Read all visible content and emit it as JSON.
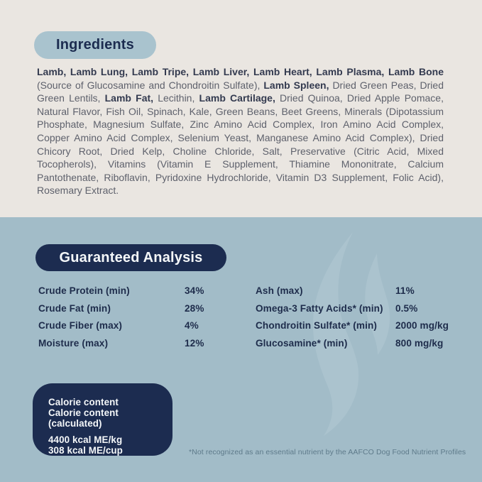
{
  "ingredients_section": {
    "heading": "Ingredients",
    "segments": [
      {
        "text": "Lamb, Lamb Lung, Lamb Tripe, Lamb Liver, Lamb Heart, Lamb Plasma, Lamb Bone",
        "bold": true
      },
      {
        "text": " (Source of Glucosamine and Chondroitin Sulfate), ",
        "bold": false
      },
      {
        "text": "Lamb Spleen,",
        "bold": true
      },
      {
        "text": " Dried Green Peas, Dried Green Lentils, ",
        "bold": false
      },
      {
        "text": "Lamb Fat,",
        "bold": true
      },
      {
        "text": " Lecithin, ",
        "bold": false
      },
      {
        "text": "Lamb Cartilage,",
        "bold": true
      },
      {
        "text": " Dried Quinoa, Dried Apple Pomace, Natural Flavor, Fish Oil, Spinach, Kale, Green Beans, Beet Greens, Minerals (Dipotassium Phosphate, Magnesium Sulfate, Zinc Amino Acid Complex, Iron Amino Acid Complex, Copper Amino Acid Complex, Selenium Yeast, Manganese Amino Acid Complex), Dried Chicory Root, Dried Kelp, Choline Chloride, Salt, Preservative (Citric Acid, Mixed Tocopherols), Vitamins (Vitamin E Supplement, Thiamine Mononitrate, Calcium Pantothenate, Riboflavin, Pyridoxine Hydrochloride, Vitamin D3 Supplement, Folic Acid), Rosemary Extract.",
        "bold": false
      }
    ]
  },
  "analysis_section": {
    "heading": "Guaranteed Analysis",
    "left_column": [
      {
        "label": "Crude Protein (min)",
        "value": "34%"
      },
      {
        "label": "Crude Fat (min)",
        "value": "28%"
      },
      {
        "label": "Crude Fiber (max)",
        "value": "4%"
      },
      {
        "label": "Moisture (max)",
        "value": "12%"
      }
    ],
    "right_column": [
      {
        "label": "Ash (max)",
        "value": "11%"
      },
      {
        "label": "Omega-3 Fatty Acids* (min)",
        "value": "0.5%"
      },
      {
        "label": "Chondroitin Sulfate* (min)",
        "value": "2000 mg/kg"
      },
      {
        "label": "Glucosamine* (min)",
        "value": "800 mg/kg"
      }
    ],
    "footnote": "*Not recognized as an essential nutrient by the AAFCO Dog Food Nutrient Profiles"
  },
  "calorie_box": {
    "labels": [
      "Calorie content",
      "Calorie content (calculated)"
    ],
    "values": [
      "4400 kcal ME/kg",
      "308 kcal ME/cup"
    ]
  },
  "icons": {
    "flame_watermark": "flame-swirl-icon"
  },
  "colors": {
    "beige": "#EAE6E1",
    "panel_blue": "#A2BCC8",
    "pill_blue": "#A9C3CE",
    "navy": "#1C2C50",
    "swirl_blue": "#ABC3CE",
    "body_text": "#5E616C",
    "body_bold_text": "#333A4F",
    "analysis_text": "#1E2C4B",
    "footnote_text": "#5E7A8A",
    "white_text": "#F4F7F9"
  }
}
